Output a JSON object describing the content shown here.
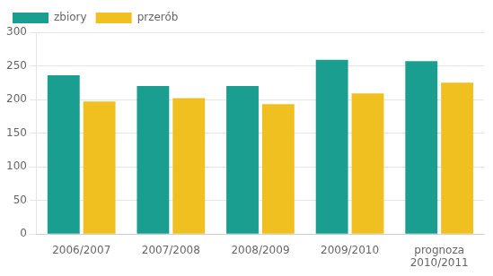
{
  "chart_data": {
    "type": "bar",
    "categories": [
      "2006/2007",
      "2007/2008",
      "2008/2009",
      "2009/2010",
      "prognoza\n2010/2011"
    ],
    "series": [
      {
        "name": "zbiory",
        "color": "#1a9e8f",
        "values": [
          236,
          220,
          220,
          259,
          257
        ]
      },
      {
        "name": "przerób",
        "color": "#f0c020",
        "values": [
          197,
          202,
          193,
          209,
          225
        ]
      }
    ],
    "ylim": [
      0,
      300
    ],
    "yticks": [
      0,
      50,
      100,
      150,
      200,
      250,
      300
    ],
    "grid": true,
    "legend": "upper left"
  }
}
